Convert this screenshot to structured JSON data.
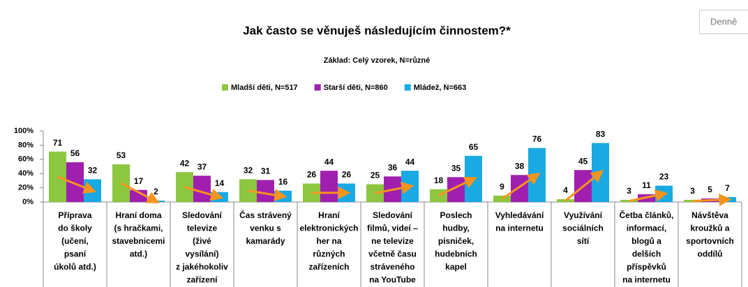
{
  "chart_data": {
    "type": "bar",
    "title": "Jak často se věnuješ následujícím činnostem?*",
    "subtitle": "Základ: Celý vzorek, N=různé",
    "categories": [
      [
        "Příprava",
        "do školy",
        "(učení,",
        "psaní",
        "úkolů atd.)"
      ],
      [
        "Hraní doma",
        "(s hračkami,",
        "stavebnicemi",
        "atd.)"
      ],
      [
        "Sledování",
        "televize",
        "(živé",
        "vysílání)",
        "z jakéhokoliv",
        "zařízení"
      ],
      [
        "Čas strávený",
        "venku s",
        "kamarády"
      ],
      [
        "Hraní",
        "elektronických",
        "her na",
        "různých",
        "zařízeních"
      ],
      [
        "Sledování",
        "filmů, videí –",
        "ne televize",
        "včetně času",
        "stráveného",
        "na YouTube"
      ],
      [
        "Poslech",
        "hudby,",
        "písniček,",
        "hudebních",
        "kapel"
      ],
      [
        "Vyhledávání",
        "na internetu"
      ],
      [
        "Využívání",
        "sociálních",
        "sítí"
      ],
      [
        "Četba článků,",
        "informací,",
        "blogů a",
        "delších",
        "příspěvků",
        "na internetu"
      ],
      [
        "Návštěva",
        "kroužků a",
        "sportovních",
        "oddílů"
      ]
    ],
    "series": [
      {
        "name": "Mladší děti, N=517",
        "color": "#8dc63f",
        "values": [
          71,
          53,
          42,
          32,
          26,
          25,
          18,
          9,
          4,
          3,
          3
        ]
      },
      {
        "name": "Starší děti, N=860",
        "color": "#a11fae",
        "values": [
          56,
          17,
          37,
          31,
          44,
          36,
          35,
          38,
          45,
          11,
          5
        ]
      },
      {
        "name": "Mládež, N=663",
        "color": "#19a9e3",
        "values": [
          32,
          2,
          14,
          16,
          26,
          44,
          65,
          76,
          83,
          23,
          7
        ]
      }
    ],
    "ylim": [
      0,
      100
    ],
    "yticks": [
      {
        "value": 0,
        "label": "0%"
      },
      {
        "value": 20,
        "label": "20%"
      },
      {
        "value": 40,
        "label": "40%"
      },
      {
        "value": 60,
        "label": "60%"
      },
      {
        "value": 80,
        "label": "80%"
      },
      {
        "value": 100,
        "label": "100%"
      }
    ],
    "trend_color": "#f7941d"
  },
  "controls": {
    "period": "Denně"
  }
}
